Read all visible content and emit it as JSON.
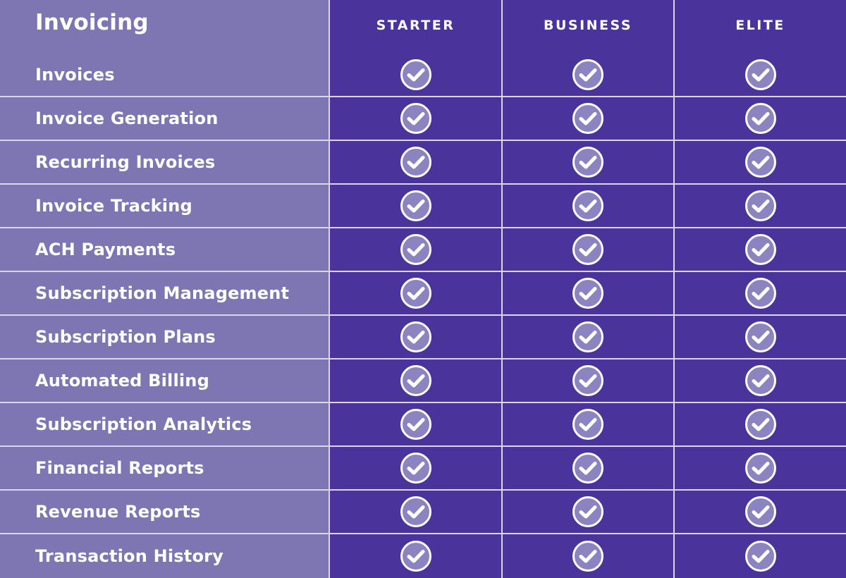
{
  "table": {
    "title": "Invoicing",
    "plans": [
      "STARTER",
      "BUSINESS",
      "ELITE"
    ],
    "features": [
      {
        "name": "Invoices",
        "included": [
          true,
          true,
          true
        ]
      },
      {
        "name": "Invoice Generation",
        "included": [
          true,
          true,
          true
        ]
      },
      {
        "name": "Recurring Invoices",
        "included": [
          true,
          true,
          true
        ]
      },
      {
        "name": "Invoice Tracking",
        "included": [
          true,
          true,
          true
        ]
      },
      {
        "name": "ACH Payments",
        "included": [
          true,
          true,
          true
        ]
      },
      {
        "name": "Subscription Management",
        "included": [
          true,
          true,
          true
        ]
      },
      {
        "name": "Subscription Plans",
        "included": [
          true,
          true,
          true
        ]
      },
      {
        "name": "Automated Billing",
        "included": [
          true,
          true,
          true
        ]
      },
      {
        "name": "Subscription Analytics",
        "included": [
          true,
          true,
          true
        ]
      },
      {
        "name": "Financial Reports",
        "included": [
          true,
          true,
          true
        ]
      },
      {
        "name": "Revenue Reports",
        "included": [
          true,
          true,
          true
        ]
      },
      {
        "name": "Transaction History",
        "included": [
          true,
          true,
          true
        ]
      }
    ],
    "icon": "check-circle-icon",
    "colors": {
      "feature_column": "#7d76b3",
      "plan_columns": "#4a339b",
      "divider": "#d9d6ec",
      "check_fill": "#8b84c0",
      "text": "#ffffff"
    }
  }
}
